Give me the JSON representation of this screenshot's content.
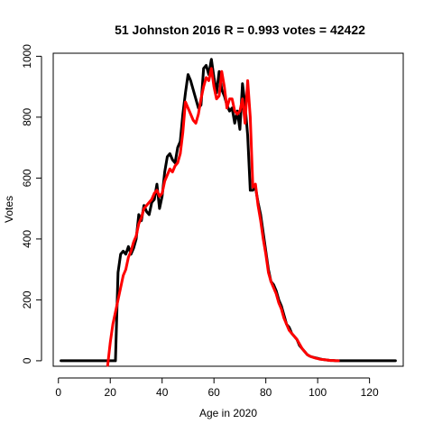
{
  "chart_data": {
    "type": "line",
    "title": "51 Johnston 2016 R = 0.993 votes = 42422",
    "xlabel": "Age in 2020",
    "ylabel": "Votes",
    "xlim": [
      -2,
      133
    ],
    "ylim": [
      -18,
      1010
    ],
    "xticks": [
      "0",
      "20",
      "40",
      "60",
      "80",
      "100",
      "120"
    ],
    "yticks": [
      "0",
      "200",
      "400",
      "600",
      "800",
      "1000"
    ],
    "grid": false,
    "legend": "none",
    "series": [
      {
        "color": "#000000",
        "x": [
          1,
          22,
          23,
          24,
          25,
          26,
          27,
          28,
          29,
          30,
          31,
          32,
          33,
          34,
          35,
          36,
          37,
          38,
          39,
          40,
          41,
          42,
          43,
          44,
          45,
          46,
          47,
          48,
          49,
          50,
          51,
          52,
          53,
          54,
          55,
          56,
          57,
          58,
          59,
          60,
          61,
          62,
          63,
          64,
          65,
          66,
          67,
          68,
          69,
          70,
          71,
          72,
          73,
          74,
          75,
          76,
          77,
          78,
          79,
          80,
          81,
          82,
          83,
          84,
          85,
          86,
          87,
          88,
          89,
          90,
          91,
          92,
          93,
          94,
          95,
          96,
          97,
          98,
          99,
          100,
          101,
          102,
          103,
          104,
          105,
          106,
          107,
          108,
          109,
          130
        ],
        "y": [
          0,
          0,
          290,
          350,
          360,
          350,
          375,
          350,
          370,
          400,
          480,
          460,
          510,
          490,
          480,
          520,
          530,
          580,
          500,
          540,
          620,
          670,
          680,
          660,
          650,
          700,
          720,
          810,
          880,
          940,
          920,
          890,
          860,
          830,
          840,
          960,
          970,
          940,
          990,
          930,
          880,
          950,
          890,
          870,
          840,
          820,
          830,
          780,
          820,
          760,
          910,
          840,
          740,
          560,
          560,
          570,
          520,
          480,
          420,
          360,
          300,
          260,
          250,
          230,
          200,
          180,
          150,
          120,
          110,
          90,
          80,
          70,
          50,
          40,
          30,
          20,
          15,
          12,
          10,
          8,
          6,
          4,
          3,
          2,
          1,
          1,
          0,
          0,
          0,
          0
        ]
      },
      {
        "color": "#ff0000",
        "x": [
          19,
          20,
          21,
          22,
          23,
          24,
          25,
          26,
          27,
          28,
          29,
          30,
          31,
          32,
          33,
          34,
          35,
          36,
          37,
          38,
          39,
          40,
          41,
          42,
          43,
          44,
          45,
          46,
          47,
          48,
          49,
          50,
          51,
          52,
          53,
          54,
          55,
          56,
          57,
          58,
          59,
          60,
          61,
          62,
          63,
          64,
          65,
          66,
          67,
          68,
          69,
          70,
          71,
          72,
          73,
          74,
          75,
          76,
          77,
          78,
          79,
          80,
          81,
          82,
          83,
          84,
          85,
          86,
          87,
          88,
          89,
          90,
          91,
          92,
          93,
          94,
          95,
          96,
          97,
          98,
          99,
          100,
          101,
          102,
          103,
          104,
          105,
          106,
          107,
          108
        ],
        "y": [
          -15,
          60,
          120,
          160,
          200,
          240,
          280,
          300,
          340,
          360,
          390,
          410,
          450,
          470,
          500,
          510,
          520,
          530,
          550,
          560,
          540,
          550,
          590,
          610,
          630,
          620,
          640,
          650,
          680,
          750,
          850,
          830,
          810,
          790,
          780,
          810,
          860,
          900,
          930,
          920,
          960,
          900,
          860,
          870,
          950,
          900,
          830,
          860,
          860,
          820,
          810,
          820,
          860,
          780,
          920,
          800,
          570,
          580,
          510,
          460,
          400,
          350,
          290,
          260,
          240,
          220,
          190,
          170,
          140,
          120,
          100,
          90,
          80,
          70,
          55,
          40,
          30,
          20,
          15,
          12,
          9,
          7,
          5,
          4,
          3,
          2,
          1,
          1,
          0,
          0
        ]
      }
    ]
  }
}
